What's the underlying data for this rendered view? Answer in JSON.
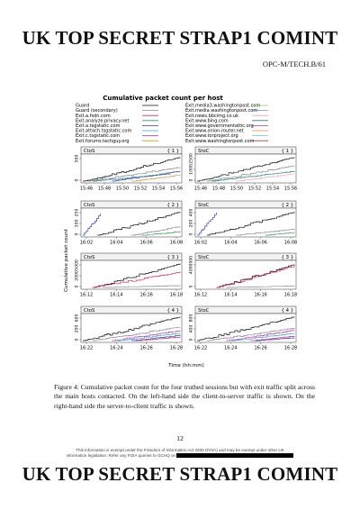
{
  "banner": {
    "classification": "UK TOP SECRET STRAP1 COMINT"
  },
  "doc_ref": "OPC-M/TECH.B/61",
  "figure": {
    "title": "Cumulative packet count per host",
    "x_label": "Time (hh:mm)",
    "y_label": "Cumulative packet count",
    "legend_left": [
      "Guard",
      "Guard (secondary)",
      "Exit.a.fsdn.com",
      "Exit.analyze.privacy.net",
      "Exit.a.tsgstatic.com",
      "Exit.attach.tsgstatic.com",
      "Exit.c.tsgstatic.com",
      "Exit.forums.techguy.org"
    ],
    "legend_right": [
      "Exit.media3.washingtonpost.com",
      "Exit.media.washingtonpost.com",
      "Exit.news.bbcimg.co.uk",
      "Exit.www.bing.com",
      "Exit.www.governmentattic.org",
      "Exit.www.onion-router.net",
      "Exit.www.torproject.org",
      "Exit.www.washingtonpost.com"
    ],
    "colors": [
      "#111111",
      "#888888",
      "#e0245e",
      "#2aa84a",
      "#2c3fd6",
      "#16b7c9",
      "#d126c9",
      "#c9a400",
      "#8fd06a",
      "#6a8fd6",
      "#f2a0c8",
      "#1e7f7f",
      "#9b3fd6",
      "#f08a3c",
      "#5cc4f0",
      "#b03a2e"
    ]
  },
  "chart_data": {
    "type": "line",
    "title": "Cumulative packet count per host",
    "xlabel": "Time (hh:mm)",
    "ylabel": "Cumulative packet count",
    "panels": [
      {
        "row": 1,
        "side": "CtoS",
        "label": "{ 1 }",
        "x_ticks": [
          "15:46",
          "15:48",
          "15:50",
          "15:52",
          "15:54",
          "15:56"
        ],
        "y_ticks": [
          "0",
          "500"
        ]
      },
      {
        "row": 1,
        "side": "StoC",
        "label": "{ 1 }",
        "x_ticks": [
          "15:46",
          "15:48",
          "15:50",
          "15:52",
          "15:54",
          "15:56"
        ],
        "y_ticks": [
          "0",
          "1000",
          "2500"
        ]
      },
      {
        "row": 2,
        "side": "CtoS",
        "label": "{ 2 }",
        "x_ticks": [
          "16:02",
          "16:04",
          "16:06",
          "16:08"
        ],
        "y_ticks": [
          "0",
          "100",
          "250"
        ]
      },
      {
        "row": 2,
        "side": "StoC",
        "label": "{ 2 }",
        "x_ticks": [
          "16:02",
          "16:04",
          "16:06",
          "16:08"
        ],
        "y_ticks": [
          "0",
          "200",
          "400"
        ]
      },
      {
        "row": 3,
        "side": "CtoS",
        "label": "{ 3 }",
        "x_ticks": [
          "16:12",
          "16:14",
          "16:16",
          "16:18"
        ],
        "y_ticks": [
          "0",
          "2000",
          "5000"
        ]
      },
      {
        "row": 3,
        "side": "StoC",
        "label": "{ 3 }",
        "x_ticks": [
          "16:12",
          "16:14",
          "16:16",
          "16:18"
        ],
        "y_ticks": [
          "0",
          "4000000"
        ]
      },
      {
        "row": 4,
        "side": "CtoS",
        "label": "{ 4 }",
        "x_ticks": [
          "16:22",
          "16:24",
          "16:26",
          "16:28"
        ],
        "y_ticks": [
          "0",
          "200",
          "600"
        ]
      },
      {
        "row": 4,
        "side": "StoC",
        "label": "{ 4 }",
        "x_ticks": [
          "16:22",
          "16:24",
          "16:26",
          "16:28"
        ],
        "y_ticks": [
          "0",
          "400",
          "800"
        ]
      }
    ]
  },
  "caption": "Figure 4: Cumulative packet count for the four truthed sessions but with exit traffic split across the main hosts contacted. On the left-hand side the client-to-server traffic is shown. On the right-hand side the server-to-client traffic is shown.",
  "page_number": "12",
  "foi_notice": {
    "line1": "This information is exempt under the Freedom of Information Act 2000 (FOIA) and may be exempt under other UK",
    "line2": "information legislation. Refer any FOIA queries to GCHQ on"
  }
}
